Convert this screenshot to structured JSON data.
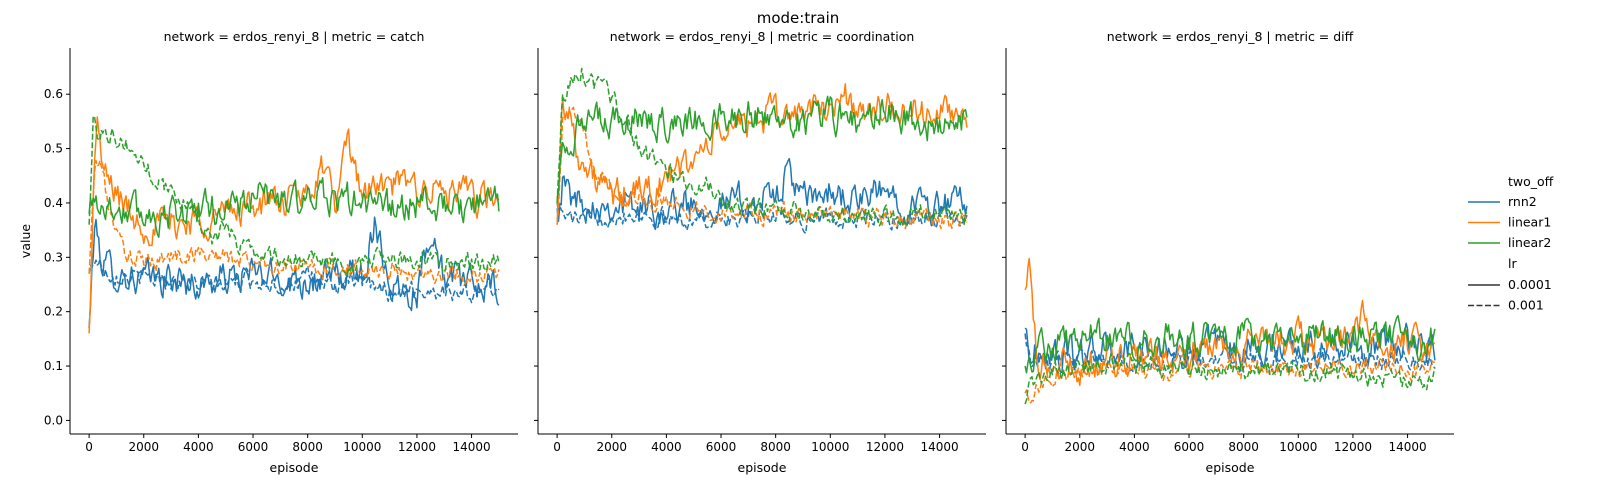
{
  "chart_data": {
    "type": "line",
    "suptitle": "mode:train",
    "ylabel": "value",
    "xlabel": "episode",
    "xlim": [
      -700,
      15700
    ],
    "ylim": [
      -0.025,
      0.685
    ],
    "xticks": [
      0,
      2000,
      4000,
      6000,
      8000,
      10000,
      12000,
      14000
    ],
    "yticks": [
      0.0,
      0.1,
      0.2,
      0.3,
      0.4,
      0.5,
      0.6
    ],
    "ytick_labels": [
      "0.0",
      "0.1",
      "0.2",
      "0.3",
      "0.4",
      "0.5",
      "0.6"
    ],
    "colors": {
      "rnn2": "#1f77b4",
      "linear1": "#ff7f0e",
      "linear2": "#2ca02c"
    },
    "legend": {
      "position": "right",
      "hue_title": "two_off",
      "hue_entries": [
        "rnn2",
        "linear1",
        "linear2"
      ],
      "style_title": "lr",
      "style_entries": [
        "0.0001",
        "0.001"
      ]
    },
    "panels": [
      {
        "title": "network = erdos_renyi_8 | metric = catch",
        "series": [
          {
            "two_off": "rnn2",
            "lr": "0.0001",
            "x": [
              0,
              200,
              500,
              1000,
              2000,
              3000,
              4000,
              5000,
              6000,
              7000,
              8000,
              9000,
              10000,
              10500,
              11000,
              12000,
              12500,
              13000,
              14000,
              15000
            ],
            "y": [
              0.17,
              0.36,
              0.29,
              0.27,
              0.26,
              0.26,
              0.25,
              0.26,
              0.27,
              0.26,
              0.26,
              0.26,
              0.27,
              0.37,
              0.25,
              0.24,
              0.36,
              0.26,
              0.25,
              0.24
            ]
          },
          {
            "two_off": "rnn2",
            "lr": "0.001",
            "x": [
              0,
              200,
              500,
              1000,
              2000,
              3000,
              4000,
              5000,
              6000,
              7000,
              8000,
              9000,
              10000,
              11000,
              12000,
              13000,
              14000,
              15000
            ],
            "y": [
              0.27,
              0.3,
              0.28,
              0.27,
              0.26,
              0.26,
              0.25,
              0.25,
              0.26,
              0.25,
              0.26,
              0.25,
              0.25,
              0.24,
              0.24,
              0.24,
              0.23,
              0.25
            ]
          },
          {
            "two_off": "linear1",
            "lr": "0.0001",
            "x": [
              0,
              150,
              300,
              500,
              1000,
              1500,
              2000,
              3000,
              4000,
              5000,
              6000,
              7000,
              8000,
              8500,
              9000,
              9500,
              10000,
              11000,
              12000,
              13000,
              14000,
              15000
            ],
            "y": [
              0.16,
              0.4,
              0.57,
              0.45,
              0.42,
              0.38,
              0.36,
              0.36,
              0.37,
              0.38,
              0.4,
              0.4,
              0.41,
              0.47,
              0.4,
              0.5,
              0.42,
              0.43,
              0.43,
              0.42,
              0.41,
              0.4
            ]
          },
          {
            "two_off": "linear1",
            "lr": "0.001",
            "x": [
              0,
              200,
              400,
              700,
              1000,
              1500,
              2000,
              3000,
              4000,
              5000,
              6000,
              8000,
              10000,
              12000,
              13000,
              14000,
              15000
            ],
            "y": [
              0.27,
              0.46,
              0.48,
              0.4,
              0.34,
              0.3,
              0.29,
              0.3,
              0.31,
              0.3,
              0.29,
              0.28,
              0.28,
              0.27,
              0.27,
              0.27,
              0.27
            ]
          },
          {
            "two_off": "linear2",
            "lr": "0.0001",
            "x": [
              0,
              200,
              400,
              700,
              1000,
              2000,
              3000,
              4000,
              5000,
              6000,
              7000,
              8000,
              9000,
              10000,
              11000,
              12000,
              13000,
              14000,
              15000
            ],
            "y": [
              0.38,
              0.42,
              0.4,
              0.39,
              0.39,
              0.38,
              0.38,
              0.39,
              0.39,
              0.41,
              0.41,
              0.4,
              0.41,
              0.4,
              0.39,
              0.4,
              0.39,
              0.39,
              0.4
            ]
          },
          {
            "two_off": "linear2",
            "lr": "0.001",
            "x": [
              0,
              150,
              300,
              600,
              1000,
              1500,
              2000,
              3000,
              4000,
              4500,
              5000,
              6000,
              7000,
              8000,
              10000,
              12000,
              13000,
              14000,
              15000
            ],
            "y": [
              0.36,
              0.55,
              0.53,
              0.54,
              0.52,
              0.5,
              0.47,
              0.42,
              0.38,
              0.33,
              0.35,
              0.31,
              0.3,
              0.29,
              0.29,
              0.3,
              0.29,
              0.29,
              0.29
            ]
          }
        ]
      },
      {
        "title": "network = erdos_renyi_8 | metric = coordination",
        "series": [
          {
            "two_off": "rnn2",
            "lr": "0.0001",
            "x": [
              0,
              200,
              500,
              1000,
              2000,
              3000,
              4000,
              5000,
              6000,
              7000,
              8000,
              8500,
              9000,
              10000,
              11000,
              12000,
              13000,
              14000,
              15000
            ],
            "y": [
              0.39,
              0.44,
              0.41,
              0.4,
              0.4,
              0.39,
              0.39,
              0.4,
              0.4,
              0.4,
              0.41,
              0.46,
              0.4,
              0.42,
              0.4,
              0.42,
              0.4,
              0.39,
              0.4
            ]
          },
          {
            "two_off": "rnn2",
            "lr": "0.001",
            "x": [
              0,
              200,
              500,
              1000,
              2000,
              3000,
              4000,
              5000,
              6000,
              7000,
              8000,
              9000,
              10000,
              11000,
              12000,
              13000,
              14000,
              15000
            ],
            "y": [
              0.4,
              0.38,
              0.37,
              0.37,
              0.38,
              0.38,
              0.37,
              0.37,
              0.37,
              0.37,
              0.38,
              0.37,
              0.37,
              0.37,
              0.37,
              0.37,
              0.37,
              0.37
            ]
          },
          {
            "two_off": "linear1",
            "lr": "0.0001",
            "x": [
              0,
              200,
              500,
              1000,
              2000,
              3000,
              4000,
              5000,
              6000,
              7000,
              8000,
              9000,
              10000,
              10500,
              11000,
              12000,
              13000,
              14000,
              15000
            ],
            "y": [
              0.36,
              0.6,
              0.55,
              0.46,
              0.41,
              0.42,
              0.44,
              0.48,
              0.53,
              0.55,
              0.56,
              0.57,
              0.57,
              0.61,
              0.56,
              0.57,
              0.57,
              0.56,
              0.57
            ]
          },
          {
            "two_off": "linear1",
            "lr": "0.001",
            "x": [
              0,
              200,
              500,
              1000,
              1500,
              2000,
              3000,
              4000,
              5000,
              6000,
              8000,
              10000,
              12000,
              14000,
              15000
            ],
            "y": [
              0.36,
              0.55,
              0.57,
              0.52,
              0.46,
              0.42,
              0.41,
              0.4,
              0.39,
              0.38,
              0.38,
              0.38,
              0.37,
              0.37,
              0.37
            ]
          },
          {
            "two_off": "linear2",
            "lr": "0.0001",
            "x": [
              0,
              200,
              500,
              1000,
              2000,
              3000,
              4000,
              5000,
              6000,
              7000,
              8000,
              9000,
              10000,
              11000,
              12000,
              13000,
              14000,
              15000
            ],
            "y": [
              0.41,
              0.5,
              0.53,
              0.54,
              0.55,
              0.55,
              0.55,
              0.55,
              0.56,
              0.56,
              0.56,
              0.55,
              0.56,
              0.55,
              0.57,
              0.55,
              0.54,
              0.55
            ]
          },
          {
            "two_off": "linear2",
            "lr": "0.001",
            "x": [
              0,
              200,
              500,
              900,
              1200,
              1800,
              2500,
              3000,
              4000,
              5000,
              5500,
              6000,
              7000,
              8000,
              10000,
              12000,
              14000,
              15000
            ],
            "y": [
              0.4,
              0.6,
              0.62,
              0.65,
              0.62,
              0.6,
              0.56,
              0.5,
              0.46,
              0.43,
              0.44,
              0.4,
              0.39,
              0.39,
              0.38,
              0.38,
              0.38,
              0.38
            ]
          }
        ]
      },
      {
        "title": "network = erdos_renyi_8 | metric = diff",
        "series": [
          {
            "two_off": "rnn2",
            "lr": "0.0001",
            "x": [
              0,
              200,
              500,
              1000,
              2000,
              3000,
              4000,
              5000,
              6000,
              7000,
              8000,
              9000,
              10000,
              11000,
              12000,
              13000,
              14000,
              15000
            ],
            "y": [
              0.17,
              0.12,
              0.12,
              0.12,
              0.12,
              0.13,
              0.13,
              0.13,
              0.13,
              0.13,
              0.13,
              0.14,
              0.14,
              0.14,
              0.14,
              0.14,
              0.14,
              0.14
            ]
          },
          {
            "two_off": "rnn2",
            "lr": "0.001",
            "x": [
              0,
              200,
              500,
              1000,
              2000,
              3000,
              4000,
              5000,
              6000,
              7000,
              8000,
              9000,
              10000,
              11000,
              12000,
              13000,
              14000,
              15000
            ],
            "y": [
              0.16,
              0.12,
              0.11,
              0.11,
              0.11,
              0.11,
              0.11,
              0.11,
              0.11,
              0.11,
              0.11,
              0.11,
              0.11,
              0.11,
              0.11,
              0.11,
              0.11,
              0.11
            ]
          },
          {
            "two_off": "linear1",
            "lr": "0.0001",
            "x": [
              0,
              150,
              300,
              500,
              1000,
              2000,
              3000,
              4000,
              5000,
              6000,
              7000,
              8000,
              9000,
              10000,
              11000,
              12000,
              12500,
              13000,
              14000,
              15000
            ],
            "y": [
              0.24,
              0.27,
              0.18,
              0.1,
              0.1,
              0.1,
              0.11,
              0.12,
              0.12,
              0.12,
              0.13,
              0.15,
              0.14,
              0.15,
              0.15,
              0.15,
              0.2,
              0.14,
              0.14,
              0.15
            ]
          },
          {
            "two_off": "linear1",
            "lr": "0.001",
            "x": [
              0,
              200,
              500,
              1000,
              2000,
              3000,
              4000,
              5000,
              6000,
              7000,
              8000,
              9000,
              10000,
              11000,
              12000,
              13000,
              14000,
              15000
            ],
            "y": [
              0.05,
              0.04,
              0.06,
              0.08,
              0.09,
              0.09,
              0.09,
              0.09,
              0.1,
              0.1,
              0.1,
              0.1,
              0.1,
              0.1,
              0.1,
              0.1,
              0.09,
              0.1
            ]
          },
          {
            "two_off": "linear2",
            "lr": "0.0001",
            "x": [
              0,
              200,
              500,
              1000,
              2000,
              3000,
              4000,
              5000,
              6000,
              7000,
              8000,
              9000,
              10000,
              11000,
              12000,
              13000,
              14000,
              15000
            ],
            "y": [
              0.1,
              0.12,
              0.13,
              0.14,
              0.15,
              0.15,
              0.15,
              0.16,
              0.15,
              0.15,
              0.15,
              0.15,
              0.15,
              0.15,
              0.15,
              0.15,
              0.14,
              0.15
            ]
          },
          {
            "two_off": "linear2",
            "lr": "0.001",
            "x": [
              0,
              200,
              500,
              1000,
              2000,
              3000,
              4000,
              5000,
              6000,
              7000,
              8000,
              9000,
              10000,
              11000,
              12000,
              13000,
              14000,
              15000
            ],
            "y": [
              0.03,
              0.06,
              0.08,
              0.09,
              0.1,
              0.1,
              0.1,
              0.1,
              0.09,
              0.09,
              0.09,
              0.09,
              0.09,
              0.09,
              0.08,
              0.08,
              0.08,
              0.08
            ]
          }
        ]
      }
    ]
  }
}
